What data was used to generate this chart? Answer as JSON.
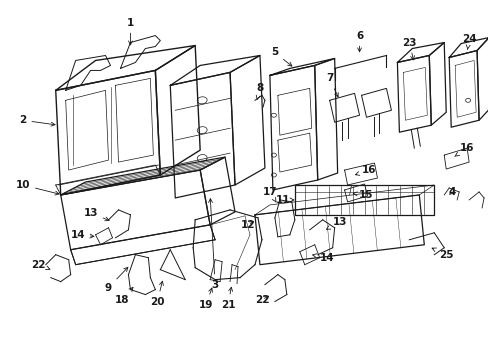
{
  "bg_color": "#ffffff",
  "fig_width": 4.89,
  "fig_height": 3.6,
  "dpi": 100,
  "line_color": "#1a1a1a",
  "lw": 0.7
}
